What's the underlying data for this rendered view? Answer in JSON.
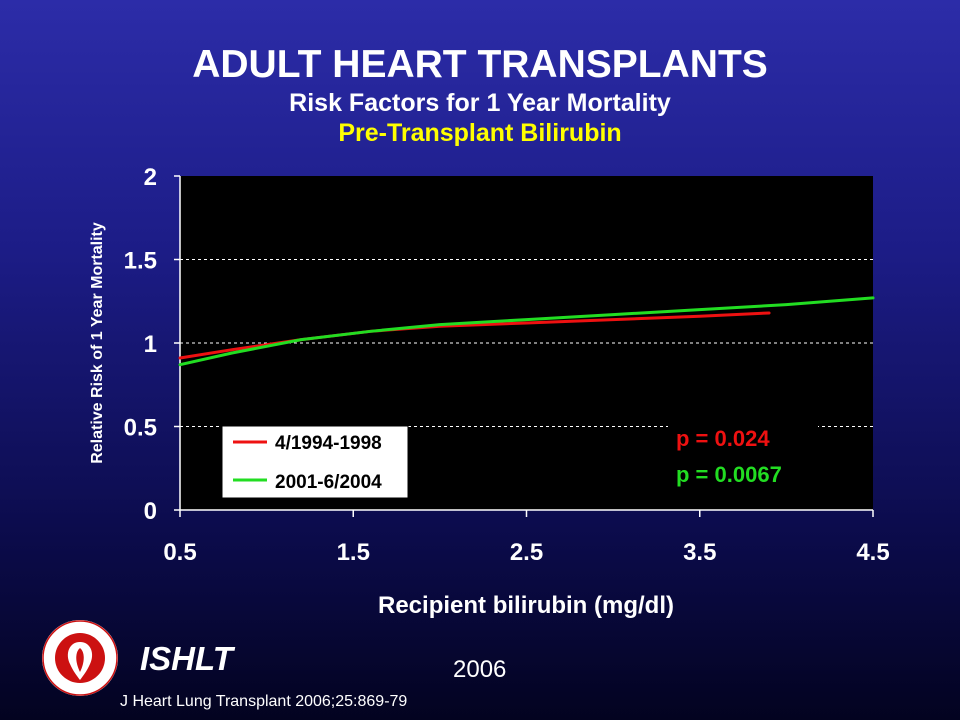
{
  "header": {
    "title": "ADULT HEART TRANSPLANTS",
    "subtitle": "Risk Factors for 1 Year Mortality",
    "subtitle2": "Pre-Transplant Bilirubin"
  },
  "chart_data": {
    "type": "line",
    "xlabel": "Recipient bilirubin (mg/dl)",
    "ylabel": "Relative Risk of 1 Year Mortality",
    "xlim": [
      0.5,
      4.5
    ],
    "ylim": [
      0,
      2
    ],
    "xticks": [
      "0.5",
      "1.5",
      "2.5",
      "3.5",
      "4.5"
    ],
    "yticks": [
      "0",
      "0.5",
      "1",
      "1.5",
      "2"
    ],
    "grid": "horizontal dashed",
    "legend_position": "bottom-left",
    "series": [
      {
        "name": "4/1994-1998",
        "color": "#ee1111",
        "points": [
          [
            0.5,
            0.91
          ],
          [
            0.8,
            0.96
          ],
          [
            1.2,
            1.02
          ],
          [
            1.6,
            1.07
          ],
          [
            2.0,
            1.1
          ],
          [
            2.5,
            1.12
          ],
          [
            3.0,
            1.14
          ],
          [
            3.5,
            1.16
          ],
          [
            3.9,
            1.18
          ]
        ]
      },
      {
        "name": "2001-6/2004",
        "color": "#22dd22",
        "points": [
          [
            0.5,
            0.87
          ],
          [
            0.8,
            0.94
          ],
          [
            1.2,
            1.02
          ],
          [
            1.6,
            1.07
          ],
          [
            2.0,
            1.11
          ],
          [
            2.5,
            1.14
          ],
          [
            3.0,
            1.17
          ],
          [
            3.5,
            1.2
          ],
          [
            4.0,
            1.23
          ],
          [
            4.5,
            1.27
          ]
        ]
      }
    ],
    "annotations": [
      {
        "text": "p = 0.024",
        "color": "#ee1111"
      },
      {
        "text": "p = 0.0067",
        "color": "#22dd22"
      }
    ]
  },
  "footer": {
    "org": "ISHLT",
    "year": "2006",
    "citation": "J Heart Lung Transplant 2006;25:869-79",
    "logo_icon": "ishlt-seal-icon"
  }
}
